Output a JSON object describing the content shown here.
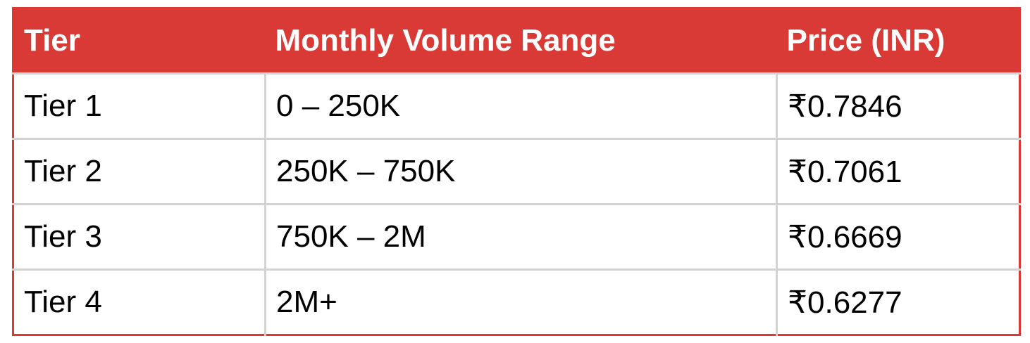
{
  "table": {
    "header": [
      "Tier",
      "Monthly Volume Range",
      "Price (INR)"
    ],
    "rows": [
      [
        "Tier 1",
        "0 – 250K",
        "₹0.7846"
      ],
      [
        "Tier 2",
        "250K – 750K",
        "₹0.7061"
      ],
      [
        "Tier 3",
        "750K – 2M",
        "₹0.6669"
      ],
      [
        "Tier 4",
        "2M+",
        "₹0.6277"
      ]
    ]
  }
}
